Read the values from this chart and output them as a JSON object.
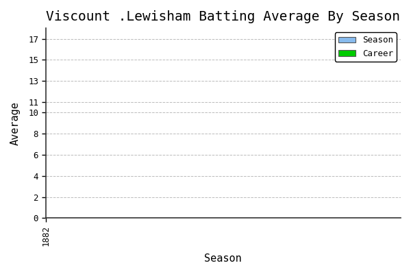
{
  "title": "Viscount .Lewisham Batting Average By Season",
  "xlabel": "Season",
  "ylabel": "Average",
  "ylim": [
    0,
    18
  ],
  "yticks": [
    0,
    2,
    4,
    6,
    8,
    10,
    11,
    13,
    15,
    17
  ],
  "xtick_values": [
    1882
  ],
  "season_color": "#88BBEE",
  "career_color": "#00CC00",
  "bg_color": "#FFFFFF",
  "plot_bg_color": "#FFFFFF",
  "grid_color": "#AAAAAA",
  "spine_color": "#333333",
  "title_fontsize": 14,
  "axis_label_fontsize": 11,
  "tick_fontsize": 9,
  "legend_labels": [
    "Season",
    "Career"
  ],
  "font_family": "monospace"
}
